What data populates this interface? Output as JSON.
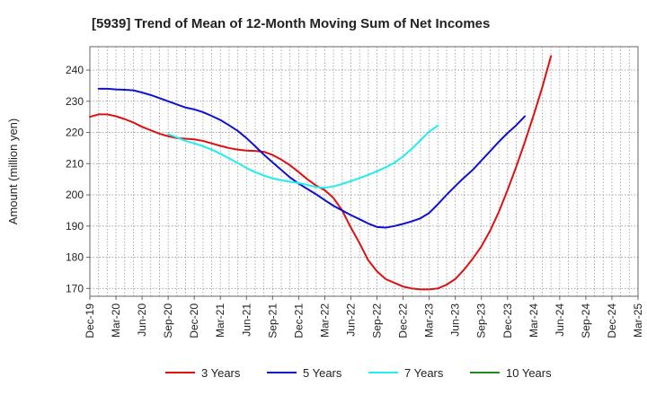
{
  "chart_data": {
    "type": "line",
    "title": "[5939]  Trend of Mean of 12-Month Moving Sum of Net Incomes",
    "xlabel": "",
    "ylabel": "Amount (million yen)",
    "ylim": [
      167.5,
      247.5
    ],
    "yticks": [
      170,
      180,
      190,
      200,
      210,
      220,
      230,
      240
    ],
    "ytick_labels": [
      "170",
      "180",
      "190",
      "200",
      "210",
      "220",
      "230",
      "240"
    ],
    "x_tick_labels": [
      "Dec-19",
      "Mar-20",
      "Jun-20",
      "Sep-20",
      "Dec-20",
      "Mar-21",
      "Jun-21",
      "Sep-21",
      "Dec-21",
      "Mar-22",
      "Jun-22",
      "Sep-22",
      "Dec-22",
      "Mar-23",
      "Jun-23",
      "Sep-23",
      "Dec-23",
      "Mar-24",
      "Jun-24",
      "Sep-24",
      "Dec-24",
      "Mar-25"
    ],
    "grid": true,
    "legend_position": "bottom",
    "series": [
      {
        "name": "3 Years",
        "color": "#dd1111",
        "start_index": 0,
        "values": [
          225.0,
          225.8,
          225.8,
          225.2,
          224.3,
          223.2,
          221.8,
          220.7,
          219.6,
          218.8,
          218.2,
          218.0,
          217.8,
          217.3,
          216.5,
          215.7,
          215.0,
          214.5,
          214.2,
          214.1,
          213.8,
          212.8,
          211.3,
          209.5,
          207.3,
          205.0,
          203.0,
          201.5,
          199.0,
          195.0,
          189.5,
          184.5,
          179.0,
          175.5,
          173.0,
          171.8,
          170.6,
          170.0,
          169.7,
          169.7,
          170.0,
          171.2,
          173.0,
          176.0,
          179.5,
          183.5,
          188.5,
          194.5,
          201.5,
          209.0,
          217.0,
          225.5,
          234.5,
          244.5
        ]
      },
      {
        "name": "5 Years",
        "color": "#1111cc",
        "start_index": 1,
        "values": [
          234.0,
          234.0,
          233.8,
          233.7,
          233.5,
          232.8,
          232.0,
          231.0,
          230.0,
          229.0,
          228.0,
          227.4,
          226.5,
          225.3,
          224.0,
          222.3,
          220.5,
          218.2,
          215.6,
          212.9,
          210.4,
          208.0,
          205.6,
          203.6,
          201.9,
          200.2,
          198.3,
          196.5,
          195.0,
          193.5,
          192.2,
          190.8,
          189.7,
          189.5,
          190.0,
          190.7,
          191.5,
          192.5,
          194.2,
          197.0,
          200.0,
          202.8,
          205.5,
          208.0,
          211.0,
          214.0,
          217.0,
          219.8,
          222.3,
          225.2
        ]
      },
      {
        "name": "7 Years",
        "color": "#22eeee",
        "start_index": 9,
        "values": [
          219.5,
          218.4,
          217.3,
          216.5,
          215.6,
          214.5,
          213.2,
          211.7,
          210.2,
          208.6,
          207.3,
          206.2,
          205.3,
          204.7,
          204.2,
          203.8,
          203.2,
          202.5,
          202.3,
          202.7,
          203.5,
          204.4,
          205.4,
          206.4,
          207.6,
          208.8,
          210.3,
          212.3,
          214.8,
          217.5,
          220.3,
          222.2
        ]
      },
      {
        "name": "10 Years",
        "color": "#228822",
        "start_index": 0,
        "values": []
      }
    ]
  }
}
